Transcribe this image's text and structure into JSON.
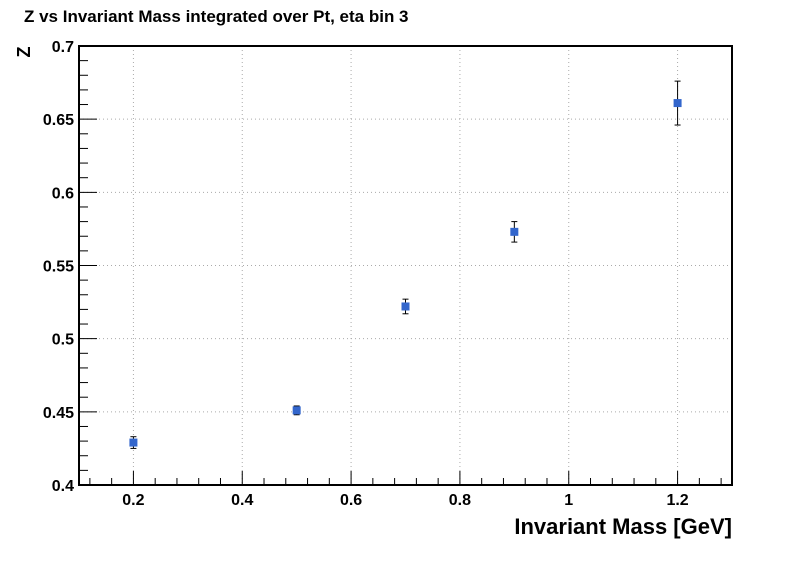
{
  "chart_data": {
    "type": "scatter",
    "title": "Z vs Invariant Mass integrated over Pt, eta bin 3",
    "xlabel": "Invariant Mass [GeV]",
    "ylabel": "Z",
    "xlim": [
      0.1,
      1.3
    ],
    "ylim": [
      0.4,
      0.7
    ],
    "xticks": [
      "0.2",
      "0.4",
      "0.6",
      "0.8",
      "1",
      "1.2"
    ],
    "yticks": [
      "0.4",
      "0.45",
      "0.5",
      "0.55",
      "0.6",
      "0.65",
      "0.7"
    ],
    "grid": true,
    "marker": "square",
    "marker_color": "#3366cc",
    "series": [
      {
        "x": [
          0.2,
          0.5,
          0.7,
          0.9,
          1.2
        ],
        "y": [
          0.429,
          0.451,
          0.522,
          0.573,
          0.661
        ],
        "yerr": [
          0.004,
          0.003,
          0.005,
          0.007,
          0.015
        ]
      }
    ]
  }
}
